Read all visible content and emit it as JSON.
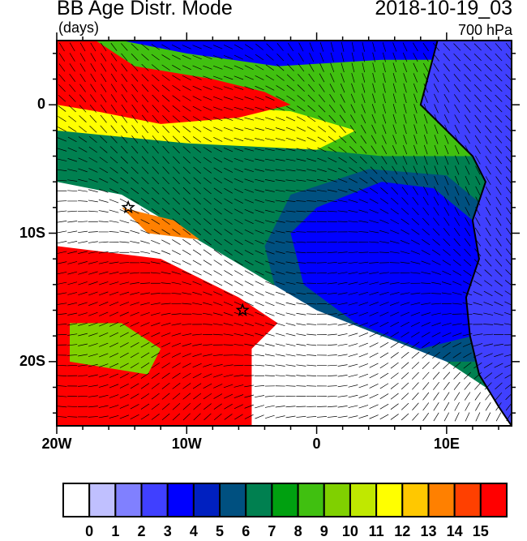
{
  "header": {
    "title": "BB Age Distr. Mode",
    "date": "2018-10-19_03",
    "units": "(days)",
    "level": "700 hPa"
  },
  "map": {
    "projection": "lat-lon",
    "lon_range": [
      -20,
      15
    ],
    "lat_range": [
      -25,
      5
    ],
    "x_ticks": [
      {
        "lon": -20,
        "label": "20W"
      },
      {
        "lon": -10,
        "label": "10W"
      },
      {
        "lon": 0,
        "label": "0"
      },
      {
        "lon": 10,
        "label": "10E"
      }
    ],
    "y_ticks": [
      {
        "lat": 0,
        "label": "0"
      },
      {
        "lat": -10,
        "label": "10S"
      },
      {
        "lat": -20,
        "label": "20S"
      }
    ],
    "markers": [
      {
        "type": "star",
        "lon": -14.5,
        "lat": -8
      },
      {
        "type": "star",
        "lon": -5.7,
        "lat": -16
      }
    ],
    "overlay": "wind barbs"
  },
  "colorbar": {
    "labels": [
      "0",
      "1",
      "2",
      "3",
      "4",
      "5",
      "6",
      "7",
      "8",
      "9",
      "10",
      "11",
      "12",
      "13",
      "14",
      "15"
    ],
    "colors": [
      "#ffffff",
      "#c0c0ff",
      "#8080ff",
      "#4040ff",
      "#0000ff",
      "#0020c0",
      "#005080",
      "#008050",
      "#00a010",
      "#40c010",
      "#80d000",
      "#c0e800",
      "#ffff00",
      "#ffc800",
      "#ff8000",
      "#ff4000",
      "#ff0000"
    ]
  }
}
